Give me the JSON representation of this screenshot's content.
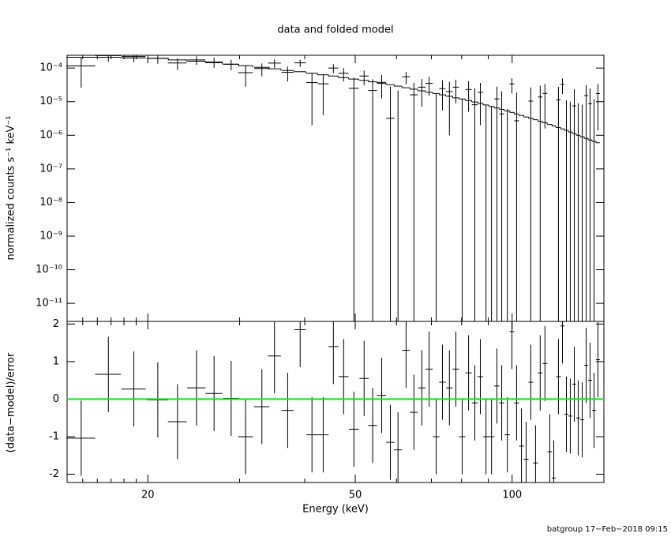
{
  "footer": "batgroup 17−Feb−2018 09:15",
  "chart_data": [
    {
      "type": "errorbar",
      "title": "data and folded model",
      "ylabel": "normalized counts s⁻¹ keV⁻¹",
      "log_x": true,
      "log_y": true,
      "xlim": [
        14,
        150
      ],
      "xticks": [
        20,
        50,
        100
      ],
      "xminorticks": [
        15,
        16,
        17,
        18,
        19,
        30,
        40,
        60,
        70,
        80,
        90
      ],
      "ylim": [
        2.9e-12,
        0.00024
      ],
      "yticks": [
        {
          "value": 0.0001,
          "label": "10⁻⁴"
        },
        {
          "value": 1e-05,
          "label": "10⁻⁵"
        },
        {
          "value": 1e-06,
          "label": "10⁻⁶"
        },
        {
          "value": 1e-07,
          "label": "10⁻⁷"
        },
        {
          "value": 1e-08,
          "label": "10⁻⁸"
        },
        {
          "value": 1e-09,
          "label": "10⁻⁹"
        },
        {
          "value": 1e-10,
          "label": "10⁻¹⁰"
        },
        {
          "value": 1e-11,
          "label": "10⁻¹¹"
        }
      ],
      "x": [
        14.9,
        16.8,
        18.8,
        20.9,
        22.8,
        24.8,
        26.8,
        28.9,
        30.8,
        33.1,
        35.0,
        37.1,
        39.2,
        41.3,
        43.4,
        45.4,
        47.5,
        49.7,
        52.0,
        54.0,
        56.2,
        58.4,
        60.4,
        62.6,
        64.8,
        67.1,
        69.3,
        71.5,
        73.5,
        75.8,
        78.0,
        80.2,
        82.5,
        84.8,
        86.9,
        89.1,
        91.3,
        93.5,
        95.5,
        97.9,
        99.9,
        102.0,
        104.2,
        106.4,
        108.6,
        110.9,
        113.2,
        115.6,
        118.1,
        120.2,
        122.7,
        124.9,
        127.1,
        129.3,
        131.6,
        133.9,
        136.3,
        138.7,
        141.1,
        143.6,
        146.1
      ],
      "xerr": [
        0.95,
        0.95,
        1,
        1,
        0.95,
        1,
        1,
        1,
        1,
        1.1,
        1,
        1,
        1,
        1.05,
        1.05,
        1,
        1.05,
        1.1,
        1.05,
        1.05,
        1.1,
        1.05,
        1.05,
        1.1,
        1.1,
        1.1,
        1.1,
        1.05,
        1.05,
        1.1,
        1.1,
        1.1,
        1.15,
        1.1,
        1.05,
        1.1,
        1.1,
        1.1,
        1.05,
        1.15,
        1.05,
        1.1,
        1.1,
        1.1,
        1.1,
        1.15,
        1.15,
        1.2,
        1.2,
        1.1,
        1.2,
        1.15,
        1.1,
        1.1,
        1.15,
        1.15,
        1.2,
        1.2,
        1.2,
        1.25,
        1.25
      ],
      "series": [
        {
          "color": "#000000",
          "values": [
            0.000116,
            0.000235,
            0.00022,
            0.000194,
            0.000142,
            0.000175,
            0.000152,
            0.000131,
            7.3e-05,
            9.7e-05,
            0.000141,
            7.5e-05,
            0.000143,
            3.7e-05,
            3.4e-05,
            0.0001,
            7e-05,
            2.5e-05,
            5.8e-05,
            2.15e-05,
            3.75e-05,
            3.2e-06,
            -7e-07,
            5.5e-05,
            1.6e-05,
            2.7e-05,
            3.5e-05,
            -2.5e-06,
            2.45e-05,
            2e-05,
            2.7e-05,
            -6e-06,
            2.3e-05,
            8.1e-06,
            1.9e-05,
            -9e-06,
            -9.8e-06,
            1.21e-05,
            4.3e-06,
            -9.9e-06,
            3.36e-05,
            2.7e-06,
            -1.61e-05,
            -2.2e-05,
            1.04e-05,
            -2.43e-05,
            1.38e-05,
            1.76e-05,
            -2.03e-05,
            -3.17e-05,
            1.13e-05,
            3.28e-05,
            -5e-06,
            -5.95e-06,
            7.5e-06,
            -7e-06,
            -7.9e-06,
            1.52e-05,
            8.7e-06,
            -4.1e-06,
            1.74e-05
          ],
          "errors": [
            9e-05,
            8e-05,
            7e-05,
            6e-05,
            5.5e-05,
            5e-05,
            5e-05,
            4.5e-05,
            4.5e-05,
            4e-05,
            4e-05,
            3.5e-05,
            3.5e-05,
            3.5e-05,
            3e-05,
            3e-05,
            3e-05,
            2.7e-05,
            2.7e-05,
            2.5e-05,
            2.5e-05,
            2.5e-05,
            2.2e-05,
            2.2e-05,
            2.1e-05,
            2e-05,
            2e-05,
            2e-05,
            1.9e-05,
            1.9e-05,
            1.8e-05,
            1.8e-05,
            1.8e-05,
            1.7e-05,
            1.7e-05,
            1.7e-05,
            1.7e-05,
            1.6e-05,
            1.6e-05,
            1.6e-05,
            1.6e-05,
            1.6e-05,
            1.6e-05,
            1.6e-05,
            1.6e-05,
            1.6e-05,
            1.6e-05,
            1.6e-05,
            1.6e-05,
            1.6e-05,
            1.6e-05,
            1.6e-05,
            1.6e-05,
            1.6e-05,
            1.6e-05,
            1.6e-05,
            1.6e-05,
            1.6e-05,
            1.6e-05,
            1.6e-05,
            1.6e-05
          ]
        },
        {
          "color": "#000000",
          "step": true,
          "values": [
            0.00021,
            0.00021,
            0.0002,
            0.000195,
            0.000175,
            0.00016,
            0.000145,
            0.00013,
            0.000118,
            0.000105,
            9.5e-05,
            8.5e-05,
            7.8e-05,
            7e-05,
            6.3e-05,
            5.8e-05,
            5.2e-05,
            4.7e-05,
            4.3e-05,
            3.9e-05,
            3.5e-05,
            3.2e-05,
            2.9e-05,
            2.6e-05,
            2.35e-05,
            2.1e-05,
            1.9e-05,
            1.75e-05,
            1.6e-05,
            1.45e-05,
            1.3e-05,
            1.2e-05,
            1.08e-05,
            9.8e-06,
            8.9e-06,
            8e-06,
            7.2e-06,
            6.5e-06,
            5.9e-06,
            5.3e-06,
            4.8e-06,
            4.3e-06,
            3.9e-06,
            3.5e-06,
            3.2e-06,
            2.9e-06,
            2.6e-06,
            2.35e-06,
            2.1e-06,
            1.9e-06,
            1.7e-06,
            1.55e-06,
            1.4e-06,
            1.25e-06,
            1.12e-06,
            1e-06,
            9e-07,
            8.1e-07,
            7.3e-07,
            6.6e-07,
            6e-07
          ]
        }
      ]
    },
    {
      "type": "errorbar",
      "xlabel": "Energy (keV)",
      "ylabel": "(data−model)/error",
      "ylim": [
        -2.22,
        2.07
      ],
      "yticks": [
        -2,
        -1,
        0,
        1,
        2
      ],
      "reference_line": {
        "value": 0,
        "color": "#22dd22"
      },
      "series": [
        {
          "color": "#000000",
          "values": [
            -1.04,
            0.66,
            0.27,
            -0.02,
            -0.6,
            0.3,
            0.15,
            0.02,
            -1.0,
            -0.2,
            1.15,
            -0.3,
            1.85,
            -0.95,
            -0.95,
            1.4,
            0.6,
            -0.8,
            0.55,
            -0.7,
            0.1,
            -1.15,
            -1.35,
            1.3,
            -0.35,
            0.3,
            0.8,
            -1.0,
            0.45,
            0.3,
            0.8,
            -1.0,
            0.7,
            -0.1,
            0.6,
            -1.0,
            -1.0,
            0.35,
            -0.1,
            -0.95,
            1.8,
            -0.1,
            -1.25,
            -1.6,
            0.45,
            -1.7,
            0.7,
            0.95,
            -1.4,
            -2.1,
            0.6,
            1.95,
            -0.4,
            -0.45,
            0.4,
            -0.5,
            -0.55,
            0.9,
            0.5,
            -0.3,
            1.05
          ],
          "errors": [
            1,
            1,
            1,
            1,
            1,
            1,
            1,
            1,
            1,
            1,
            1,
            1,
            1,
            1,
            1,
            1,
            1,
            1,
            1,
            1,
            1,
            1,
            1,
            1,
            1,
            1,
            1,
            1,
            1,
            1,
            1,
            1,
            1,
            1,
            1,
            1,
            1,
            1,
            1,
            1,
            1,
            1,
            1,
            1,
            1,
            1,
            1,
            1,
            1,
            1,
            1,
            1,
            1,
            1,
            1,
            1,
            1,
            1,
            1,
            1,
            1
          ]
        }
      ]
    }
  ]
}
